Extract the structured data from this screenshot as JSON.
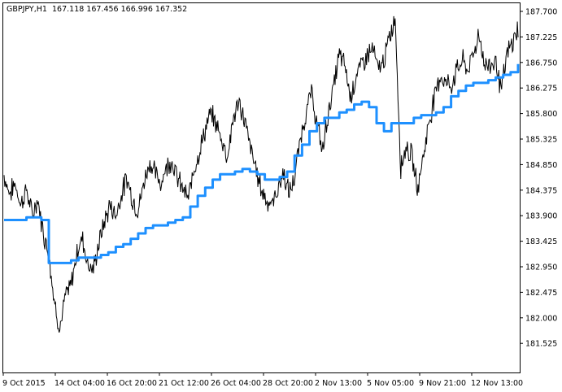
{
  "header": {
    "symbol": "GBPJPY,H1",
    "ohlc": "167.118 167.456 166.996 167.352"
  },
  "colors": {
    "background": "#ffffff",
    "price_line": "#000000",
    "indicator_line": "#1e90ff",
    "frame": "#000000"
  },
  "chart_data": {
    "type": "line",
    "y_axis_labels": [
      "187.700",
      "187.225",
      "186.750",
      "186.275",
      "185.800",
      "185.325",
      "184.850",
      "184.375",
      "183.900",
      "183.425",
      "182.950",
      "182.475",
      "182.000",
      "181.525"
    ],
    "x_axis_labels": [
      "9 Oct 2015",
      "14 Oct 04:00",
      "16 Oct 20:00",
      "21 Oct 12:00",
      "26 Oct 04:00",
      "28 Oct 20:00",
      "2 Nov 13:00",
      "5 Nov 05:00",
      "9 Nov 21:00",
      "12 Nov 13:00"
    ],
    "ylim": [
      181.05,
      187.78
    ],
    "series": [
      {
        "values": [
          184.65,
          184.3,
          184.5,
          184.1,
          184.4,
          183.9,
          184.2,
          183.6,
          183.2,
          182.3,
          181.8,
          182.4,
          182.6,
          183.2,
          183.5,
          183.0,
          182.9,
          183.4,
          183.8,
          184.1,
          183.9,
          184.3,
          184.6,
          184.2,
          184.0,
          184.5,
          184.9,
          184.7,
          184.5,
          184.8,
          184.95,
          184.6,
          184.4,
          184.2,
          184.8,
          185.1,
          185.5,
          185.8,
          185.6,
          185.3,
          185.0,
          185.7,
          186.0,
          185.7,
          185.2,
          184.8,
          184.4,
          184.2,
          184.1,
          184.4,
          184.7,
          184.3,
          184.6,
          185.3,
          185.8,
          186.2,
          185.6,
          185.1,
          185.8,
          186.3,
          186.9,
          186.7,
          186.1,
          186.5,
          186.7,
          186.9,
          187.0,
          186.6,
          186.8,
          187.2,
          187.6,
          184.8,
          185.2,
          185.0,
          184.4,
          185.0,
          185.6,
          186.1,
          186.5,
          186.4,
          186.3,
          186.6,
          186.8,
          186.6,
          186.9,
          187.3,
          186.7,
          186.7,
          186.8,
          186.2,
          186.9,
          187.1,
          187.4
        ]
      },
      {
        "values": [
          183.82,
          183.82,
          183.82,
          183.87,
          183.87,
          183.82,
          183.02,
          183.02,
          183.02,
          183.07,
          183.12,
          183.12,
          183.12,
          183.17,
          183.22,
          183.32,
          183.37,
          183.47,
          183.57,
          183.67,
          183.72,
          183.72,
          183.77,
          183.82,
          183.87,
          184.07,
          184.27,
          184.42,
          184.57,
          184.67,
          184.67,
          184.72,
          184.77,
          184.72,
          184.67,
          184.57,
          184.57,
          184.62,
          184.72,
          185.02,
          185.22,
          185.47,
          185.62,
          185.72,
          185.72,
          185.82,
          185.87,
          185.97,
          186.02,
          185.92,
          185.62,
          185.47,
          185.62,
          185.62,
          185.62,
          185.72,
          185.77,
          185.77,
          185.82,
          185.92,
          186.12,
          186.22,
          186.32,
          186.37,
          186.37,
          186.42,
          186.47,
          186.52,
          186.57,
          186.72
        ]
      }
    ]
  }
}
